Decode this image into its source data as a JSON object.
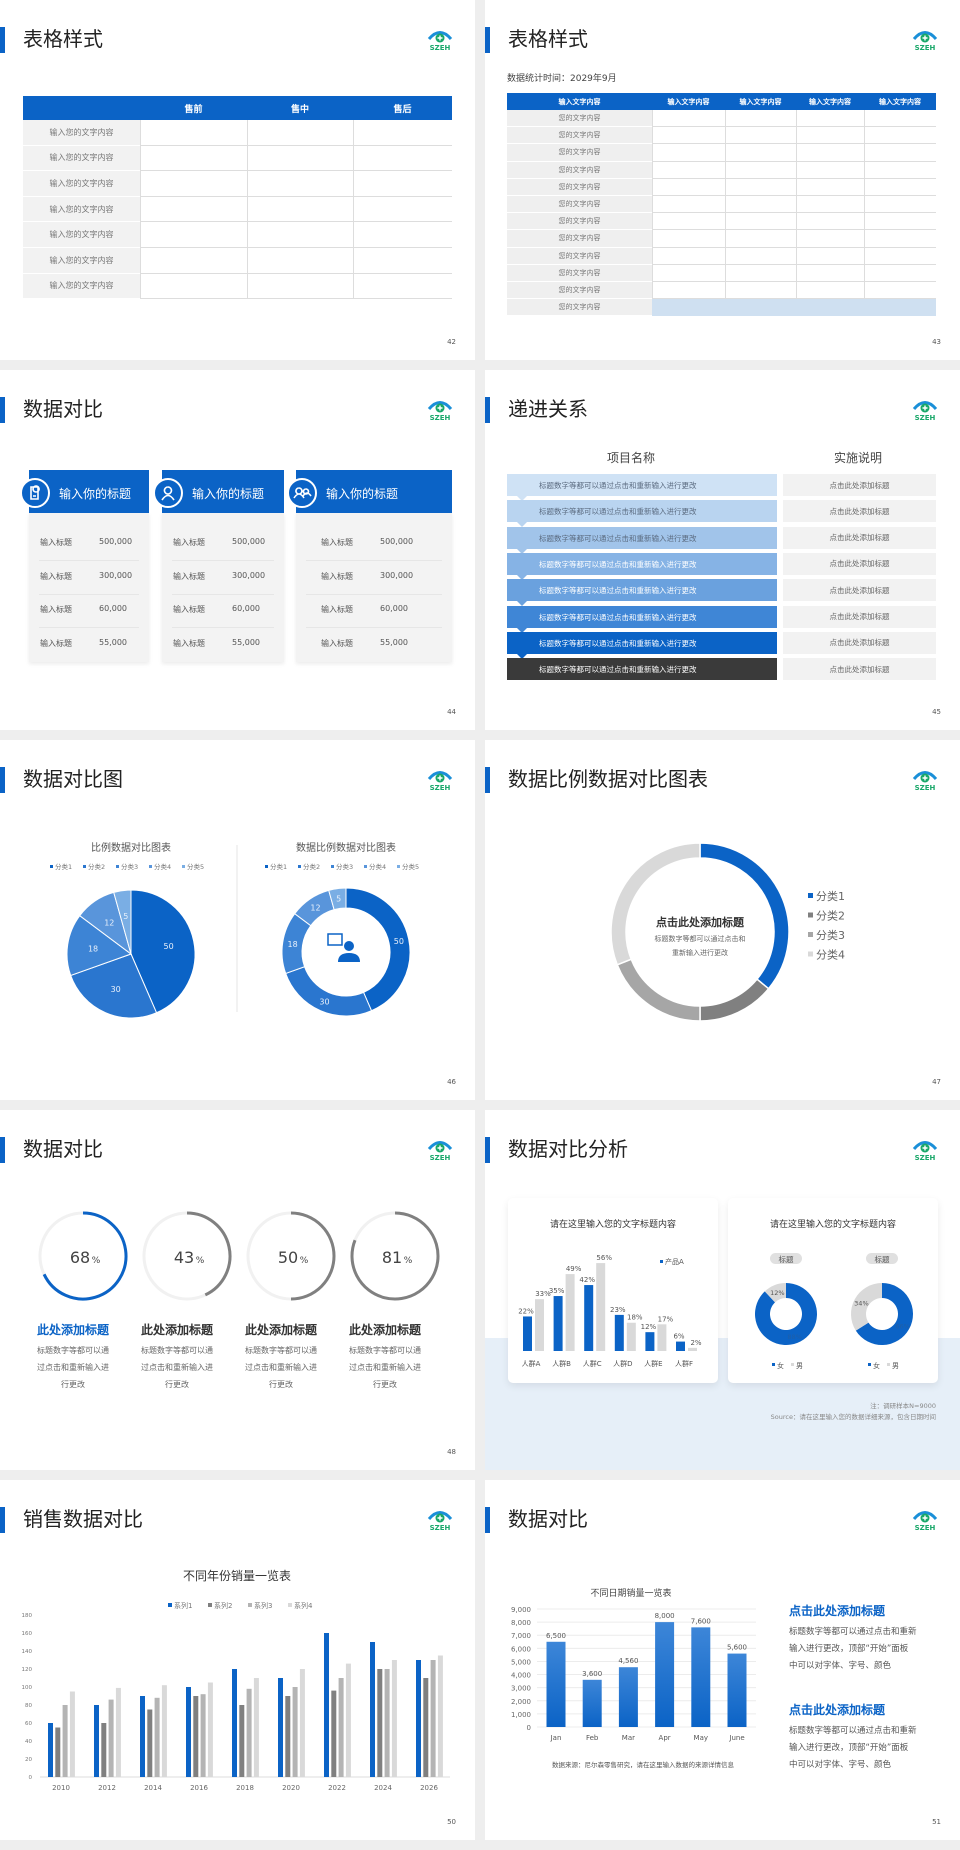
{
  "logo": {
    "text": "SZEH",
    "arc_color": "#1a8fd8",
    "dot_color": "#1aa86a"
  },
  "colors": {
    "accent": "#0b63c6",
    "dark": "#3a3a3a",
    "gray": "#808080",
    "light_gray": "#d9d9d9"
  },
  "s42": {
    "title": "表格样式",
    "page": "42",
    "headers": [
      "",
      "售前",
      "售中",
      "售后"
    ],
    "rows": [
      "输入您的文字内容",
      "输入您的文字内容",
      "输入您的文字内容",
      "输入您的文字内容",
      "输入您的文字内容",
      "输入您的文字内容",
      "输入您的文字内容"
    ]
  },
  "s43": {
    "title": "表格样式",
    "page": "43",
    "subtitle": "数据统计时间：2029年9月",
    "headers": [
      "输入文字内容",
      "输入文字内容",
      "输入文字内容",
      "输入文字内容",
      "输入文字内容"
    ],
    "rows": [
      "您的文字内容",
      "您的文字内容",
      "您的文字内容",
      "您的文字内容",
      "您的文字内容",
      "您的文字内容",
      "您的文字内容",
      "您的文字内容",
      "您的文字内容",
      "您的文字内容",
      "您的文字内容",
      "您的文字内容"
    ]
  },
  "s44": {
    "title": "数据对比",
    "page": "44",
    "cards": [
      {
        "icon": "document-user-icon",
        "heading": "输入你的标题",
        "rows": [
          {
            "label": "输入标题",
            "value": "500,000"
          },
          {
            "label": "输入标题",
            "value": "300,000"
          },
          {
            "label": "输入标题",
            "value": "60,000"
          },
          {
            "label": "输入标题",
            "value": "55,000"
          }
        ]
      },
      {
        "icon": "user-icon",
        "heading": "输入你的标题",
        "rows": [
          {
            "label": "输入标题",
            "value": "500,000"
          },
          {
            "label": "输入标题",
            "value": "300,000"
          },
          {
            "label": "输入标题",
            "value": "60,000"
          },
          {
            "label": "输入标题",
            "value": "55,000"
          }
        ]
      },
      {
        "icon": "team-icon",
        "heading": "输入你的标题",
        "rows": [
          {
            "label": "输入标题",
            "value": "500,000"
          },
          {
            "label": "输入标题",
            "value": "300,000"
          },
          {
            "label": "输入标题",
            "value": "60,000"
          },
          {
            "label": "输入标题",
            "value": "55,000"
          }
        ]
      }
    ]
  },
  "s45": {
    "title": "递进关系",
    "page": "45",
    "col1": "项目名称",
    "col2": "实施说明",
    "rows": [
      {
        "text": "标题数字等都可以通过点击和重新输入进行更改",
        "note": "点击此处添加标题",
        "color": "#cfe2f5",
        "text_color": "#5b6b80"
      },
      {
        "text": "标题数字等都可以通过点击和重新输入进行更改",
        "note": "点击此处添加标题",
        "color": "#b9d4f0",
        "text_color": "#5b6b80"
      },
      {
        "text": "标题数字等都可以通过点击和重新输入进行更改",
        "note": "点击此处添加标题",
        "color": "#a1c4ea",
        "text_color": "#5b6b80"
      },
      {
        "text": "标题数字等都可以通过点击和重新输入进行更改",
        "note": "点击此处添加标题",
        "color": "#86b3e5",
        "text_color": "#ffffff"
      },
      {
        "text": "标题数字等都可以通过点击和重新输入进行更改",
        "note": "点击此处添加标题",
        "color": "#6aa1de",
        "text_color": "#ffffff"
      },
      {
        "text": "标题数字等都可以通过点击和重新输入进行更改",
        "note": "点击此处添加标题",
        "color": "#3f86d6",
        "text_color": "#ffffff"
      },
      {
        "text": "标题数字等都可以通过点击和重新输入进行更改",
        "note": "点击此处添加标题",
        "color": "#0b63c6",
        "text_color": "#ffffff"
      },
      {
        "text": "标题数字等都可以通过点击和重新输入进行更改",
        "note": "点击此处添加标题",
        "color": "#3a3a3a",
        "text_color": "#ffffff"
      }
    ]
  },
  "s46": {
    "title": "数据对比图",
    "page": "46",
    "chart_data": [
      {
        "type": "pie",
        "title": "比例数据对比图表",
        "categories": [
          "分类1",
          "分类2",
          "分类3",
          "分类4",
          "分类5"
        ],
        "values": [
          50,
          30,
          18,
          12,
          5
        ],
        "colors": [
          "#0b63c6",
          "#2a76cf",
          "#3d84d5",
          "#5995db",
          "#7aaee4"
        ],
        "legend": "top"
      },
      {
        "type": "donut",
        "title": "数据比例数据对比图表",
        "categories": [
          "分类1",
          "分类2",
          "分类3",
          "分类4",
          "分类5"
        ],
        "values": [
          50,
          30,
          18,
          12,
          5
        ],
        "colors": [
          "#0b63c6",
          "#2a76cf",
          "#3d84d5",
          "#5995db",
          "#7aaee4"
        ],
        "legend": "top",
        "center_icon": "customer-service-icon"
      }
    ]
  },
  "s47": {
    "title": "数据比例数据对比图表",
    "page": "47",
    "center_title": "点击此处添加标题",
    "center_text": [
      "标题数字等都可以通过点击和",
      "重新输入进行更改"
    ],
    "chart_data": {
      "type": "donut",
      "categories": [
        "分类1",
        "分类2",
        "分类3",
        "分类4"
      ],
      "values": [
        36,
        14,
        19,
        31
      ],
      "colors": [
        "#0b63c6",
        "#808080",
        "#a6a6a6",
        "#d9d9d9"
      ],
      "legend": "right"
    }
  },
  "s48": {
    "title": "数据对比",
    "page": "48",
    "items": [
      {
        "value": 68,
        "label": "68",
        "unit": "%",
        "heading": "此处添加标题",
        "lines": [
          "标题数字等都可以通",
          "过点击和重新输入进",
          "行更改"
        ],
        "color": "#0b63c6"
      },
      {
        "value": 43,
        "label": "43",
        "unit": "%",
        "heading": "此处添加标题",
        "lines": [
          "标题数字等都可以通",
          "过点击和重新输入进",
          "行更改"
        ],
        "color": "#808080"
      },
      {
        "value": 50,
        "label": "50",
        "unit": "%",
        "heading": "此处添加标题",
        "lines": [
          "标题数字等都可以通",
          "过点击和重新输入进",
          "行更改"
        ],
        "color": "#808080"
      },
      {
        "value": 81,
        "label": "81",
        "unit": "%",
        "heading": "此处添加标题",
        "lines": [
          "标题数字等都可以通",
          "过点击和重新输入进",
          "行更改"
        ],
        "color": "#808080"
      }
    ]
  },
  "s49": {
    "title": "数据对比分析",
    "page": "49",
    "card1_title": "请在这里输入您的文字标题内容",
    "card2_title": "请在这里输入您的文字标题内容",
    "note1": "注：调研样本N=9000",
    "note2": "Source：请在这里输入您的数据详细来源，包含日期时间",
    "chart_data": [
      {
        "type": "bar",
        "categories": [
          "人群A",
          "人群B",
          "人群C",
          "人群D",
          "人群E",
          "人群F"
        ],
        "series": [
          {
            "name": "产品A",
            "values": [
              22,
              35,
              42,
              23,
              12,
              6
            ],
            "color": "#0b63c6"
          },
          {
            "values": [
              33,
              49,
              56,
              18,
              17,
              2
            ],
            "color": "#d9d9d9"
          }
        ],
        "value_suffix": "%",
        "legend": "top-right"
      },
      {
        "type": "donut",
        "label": "标题",
        "categories": [
          "女",
          "男"
        ],
        "values": [
          88,
          12
        ],
        "value_labels": [
          "88%",
          "12%"
        ],
        "colors": [
          "#0b63c6",
          "#d9d9d9"
        ],
        "legend": "bottom"
      },
      {
        "type": "donut",
        "label": "标题",
        "categories": [
          "女",
          "男"
        ],
        "values": [
          66,
          34
        ],
        "value_labels": [
          "66%",
          "34%"
        ],
        "colors": [
          "#0b63c6",
          "#d9d9d9"
        ],
        "legend": "bottom"
      }
    ]
  },
  "s50": {
    "title": "销售数据对比",
    "page": "50",
    "chart_data": {
      "type": "bar",
      "title": "不同年份销量一览表",
      "categories": [
        "2010",
        "2012",
        "2014",
        "2016",
        "2018",
        "2020",
        "2022",
        "2024",
        "2026"
      ],
      "series": [
        {
          "name": "系列1",
          "values": [
            60,
            80,
            90,
            100,
            120,
            110,
            160,
            150,
            130
          ],
          "color": "#0b63c6"
        },
        {
          "name": "系列2",
          "values": [
            55,
            60,
            75,
            90,
            80,
            90,
            96,
            120,
            110
          ],
          "color": "#808080"
        },
        {
          "name": "系列3",
          "values": [
            80,
            86,
            88,
            92,
            98,
            100,
            110,
            120,
            130
          ],
          "color": "#b4b4b4"
        },
        {
          "name": "系列4",
          "values": [
            95,
            99,
            102,
            105,
            110,
            120,
            126,
            130,
            135
          ],
          "color": "#d9d9d9"
        }
      ],
      "ylim": [
        0,
        180
      ],
      "yticks": [
        0,
        20,
        40,
        60,
        80,
        100,
        120,
        140,
        160,
        180
      ],
      "legend": "top",
      "grid": false
    }
  },
  "s51": {
    "title": "数据对比",
    "page": "51",
    "chart_data": {
      "type": "bar",
      "title": "不同日期销量一览表",
      "categories": [
        "Jan",
        "Feb",
        "Mar",
        "Apr",
        "May",
        "June"
      ],
      "values": [
        6500,
        3600,
        4560,
        8000,
        7600,
        5600
      ],
      "value_labels": [
        "6,500",
        "3,600",
        "4,560",
        "8,000",
        "7,600",
        "5,600"
      ],
      "ylim": [
        0,
        9000
      ],
      "yticks": [
        "0",
        "1,000",
        "2,000",
        "3,000",
        "4,000",
        "5,000",
        "6,000",
        "7,000",
        "8,000",
        "9,000"
      ],
      "grid": true,
      "color": "#0b63c6"
    },
    "source": "数据来源：尼尔森零售研究，请在这里输入数据的来源详情信息",
    "blocks": [
      {
        "heading": "点击此处添加标题",
        "lines": [
          "标题数字等都可以通过点击和重新",
          "输入进行更改，顶部“开始”面板",
          "中可以对字体、字号、颜色"
        ]
      },
      {
        "heading": "点击此处添加标题",
        "lines": [
          "标题数字等都可以通过点击和重新",
          "输入进行更改，顶部“开始”面板",
          "中可以对字体、字号、颜色"
        ]
      }
    ]
  }
}
